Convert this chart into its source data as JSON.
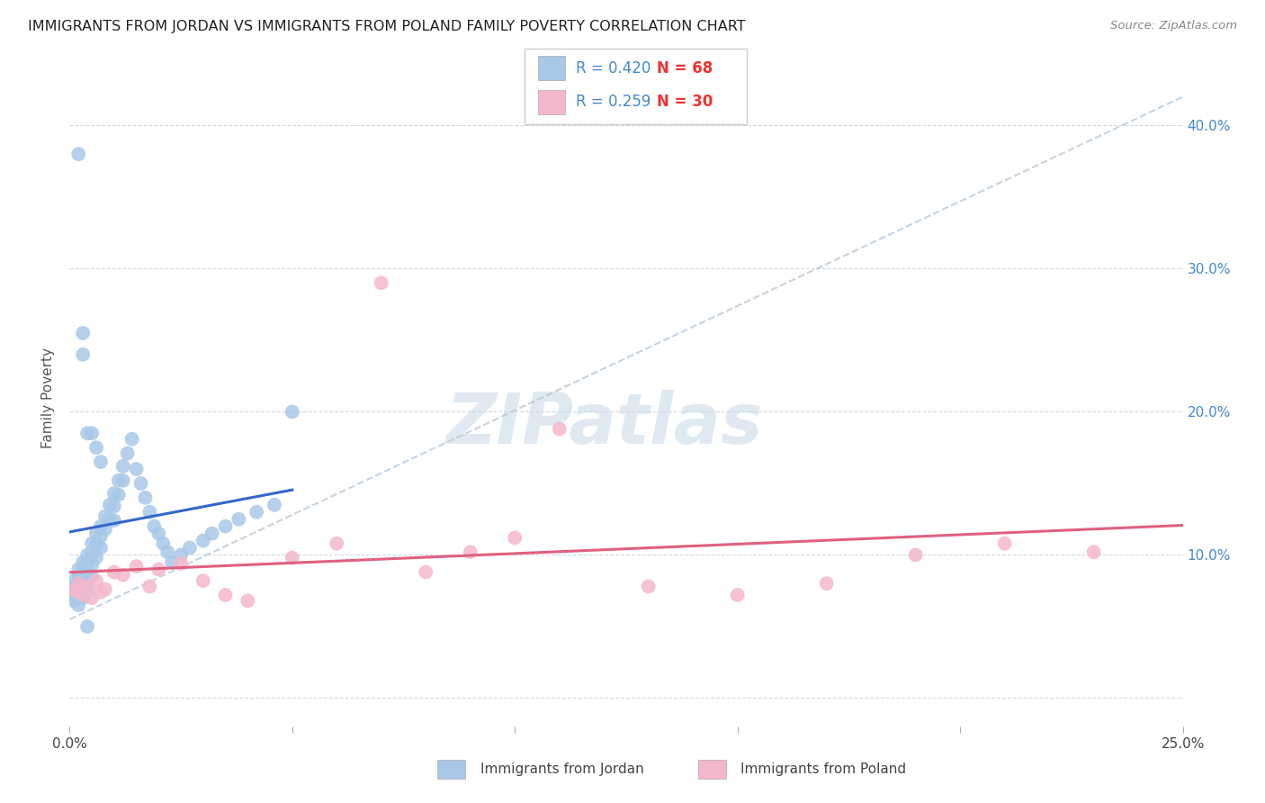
{
  "title": "IMMIGRANTS FROM JORDAN VS IMMIGRANTS FROM POLAND FAMILY POVERTY CORRELATION CHART",
  "source": "Source: ZipAtlas.com",
  "ylabel": "Family Poverty",
  "xlim": [
    0,
    0.25
  ],
  "ylim": [
    -0.02,
    0.44
  ],
  "jordan_R": 0.42,
  "jordan_N": 68,
  "poland_R": 0.259,
  "poland_N": 30,
  "jordan_color": "#a8c8e8",
  "poland_color": "#f4b8cc",
  "jordan_line_color": "#3366cc",
  "poland_line_color": "#e06080",
  "diagonal_color": "#b8c8d8",
  "background_color": "#ffffff",
  "grid_color": "#d0d8e8",
  "legend_R_color": "#4488cc",
  "legend_N_jordan_color": "#dd4444",
  "legend_N_poland_color": "#dd4444",
  "jordan_scatter_x": [
    0.001,
    0.001,
    0.001,
    0.001,
    0.002,
    0.002,
    0.002,
    0.002,
    0.002,
    0.003,
    0.003,
    0.003,
    0.003,
    0.003,
    0.004,
    0.004,
    0.004,
    0.004,
    0.004,
    0.005,
    0.005,
    0.005,
    0.005,
    0.006,
    0.006,
    0.006,
    0.007,
    0.007,
    0.007,
    0.008,
    0.008,
    0.009,
    0.009,
    0.01,
    0.01,
    0.01,
    0.011,
    0.011,
    0.012,
    0.012,
    0.013,
    0.014,
    0.015,
    0.016,
    0.017,
    0.018,
    0.019,
    0.02,
    0.021,
    0.022,
    0.023,
    0.025,
    0.027,
    0.03,
    0.032,
    0.035,
    0.038,
    0.042,
    0.046,
    0.05,
    0.002,
    0.003,
    0.003,
    0.004,
    0.005,
    0.006,
    0.007,
    0.004
  ],
  "jordan_scatter_y": [
    0.078,
    0.082,
    0.072,
    0.068,
    0.09,
    0.085,
    0.08,
    0.073,
    0.065,
    0.095,
    0.088,
    0.082,
    0.076,
    0.07,
    0.1,
    0.094,
    0.088,
    0.082,
    0.075,
    0.108,
    0.1,
    0.093,
    0.085,
    0.115,
    0.107,
    0.098,
    0.12,
    0.113,
    0.105,
    0.127,
    0.118,
    0.135,
    0.125,
    0.143,
    0.134,
    0.124,
    0.152,
    0.142,
    0.162,
    0.152,
    0.171,
    0.181,
    0.16,
    0.15,
    0.14,
    0.13,
    0.12,
    0.115,
    0.108,
    0.102,
    0.095,
    0.1,
    0.105,
    0.11,
    0.115,
    0.12,
    0.125,
    0.13,
    0.135,
    0.2,
    0.38,
    0.255,
    0.24,
    0.185,
    0.185,
    0.175,
    0.165,
    0.05
  ],
  "poland_scatter_x": [
    0.001,
    0.002,
    0.003,
    0.004,
    0.005,
    0.006,
    0.007,
    0.008,
    0.01,
    0.012,
    0.015,
    0.018,
    0.02,
    0.025,
    0.03,
    0.035,
    0.04,
    0.05,
    0.06,
    0.07,
    0.08,
    0.09,
    0.1,
    0.11,
    0.13,
    0.15,
    0.17,
    0.19,
    0.21,
    0.23
  ],
  "poland_scatter_y": [
    0.075,
    0.08,
    0.072,
    0.078,
    0.07,
    0.082,
    0.074,
    0.076,
    0.088,
    0.086,
    0.092,
    0.078,
    0.09,
    0.094,
    0.082,
    0.072,
    0.068,
    0.098,
    0.108,
    0.29,
    0.088,
    0.102,
    0.112,
    0.188,
    0.078,
    0.072,
    0.08,
    0.1,
    0.108,
    0.102
  ],
  "watermark_text": "ZIPatlas",
  "legend_label_jordan": "Immigrants from Jordan",
  "legend_label_poland": "Immigrants from Poland"
}
